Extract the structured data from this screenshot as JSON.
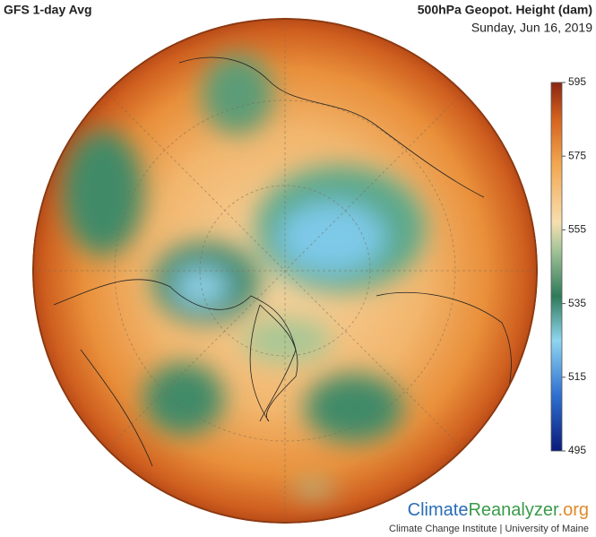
{
  "header": {
    "title": "GFS 1-day Avg",
    "variable": "500hPa Geopot. Height (dam)",
    "date": "Sunday, Jun 16, 2019"
  },
  "colorbar": {
    "lim": [
      495,
      595
    ],
    "ticks": [
      595,
      575,
      555,
      535,
      515,
      495
    ]
  },
  "footer": {
    "logo_part1": "Climate",
    "logo_part2": "Reanalyzer",
    "logo_part3": ".org",
    "credit": "Climate Change Institute | University of Maine"
  }
}
